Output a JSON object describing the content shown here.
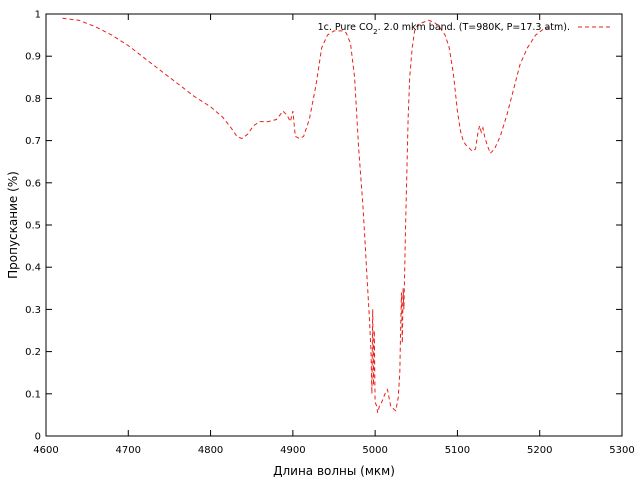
{
  "chart_data": {
    "type": "line",
    "title": "",
    "xlabel": "Длина волны (мкм)",
    "ylabel": "Пропускание (%)",
    "xlim": [
      4600,
      5300
    ],
    "ylim": [
      0,
      1
    ],
    "x_ticks": [
      4600,
      4700,
      4800,
      4900,
      5000,
      5100,
      5200,
      5300
    ],
    "y_ticks": [
      0,
      0.1,
      0.2,
      0.3,
      0.4,
      0.5,
      0.6,
      0.7,
      0.8,
      0.9,
      1
    ],
    "grid": false,
    "legend_position": "top-right",
    "series": [
      {
        "name_parts": [
          "1c. Pure CO",
          "2",
          ". 2.0 mkm band. (T=980K, P=17.3 atm)."
        ],
        "color": "#e8201a",
        "line_style": "dashed",
        "points": [
          [
            4620,
            0.99
          ],
          [
            4640,
            0.985
          ],
          [
            4660,
            0.97
          ],
          [
            4680,
            0.95
          ],
          [
            4700,
            0.925
          ],
          [
            4720,
            0.895
          ],
          [
            4740,
            0.865
          ],
          [
            4760,
            0.835
          ],
          [
            4780,
            0.805
          ],
          [
            4800,
            0.78
          ],
          [
            4815,
            0.755
          ],
          [
            4825,
            0.73
          ],
          [
            4832,
            0.71
          ],
          [
            4838,
            0.705
          ],
          [
            4845,
            0.715
          ],
          [
            4852,
            0.735
          ],
          [
            4860,
            0.745
          ],
          [
            4870,
            0.745
          ],
          [
            4880,
            0.75
          ],
          [
            4888,
            0.77
          ],
          [
            4893,
            0.76
          ],
          [
            4897,
            0.745
          ],
          [
            4900,
            0.77
          ],
          [
            4903,
            0.71
          ],
          [
            4908,
            0.705
          ],
          [
            4913,
            0.71
          ],
          [
            4920,
            0.75
          ],
          [
            4928,
            0.83
          ],
          [
            4935,
            0.92
          ],
          [
            4942,
            0.95
          ],
          [
            4950,
            0.96
          ],
          [
            4960,
            0.96
          ],
          [
            4965,
            0.955
          ],
          [
            4970,
            0.93
          ],
          [
            4975,
            0.85
          ],
          [
            4980,
            0.68
          ],
          [
            4985,
            0.55
          ],
          [
            4988,
            0.45
          ],
          [
            4990,
            0.38
          ],
          [
            4993,
            0.28
          ],
          [
            4995,
            0.2
          ],
          [
            4996,
            0.1
          ],
          [
            4997,
            0.3
          ],
          [
            4998,
            0.12
          ],
          [
            4999,
            0.25
          ],
          [
            5000,
            0.08
          ],
          [
            5002,
            0.07
          ],
          [
            5003,
            0.055
          ],
          [
            5005,
            0.07
          ],
          [
            5008,
            0.08
          ],
          [
            5012,
            0.1
          ],
          [
            5015,
            0.11
          ],
          [
            5017,
            0.09
          ],
          [
            5019,
            0.07
          ],
          [
            5022,
            0.065
          ],
          [
            5025,
            0.06
          ],
          [
            5028,
            0.09
          ],
          [
            5030,
            0.15
          ],
          [
            5031,
            0.26
          ],
          [
            5032,
            0.34
          ],
          [
            5033,
            0.22
          ],
          [
            5034,
            0.35
          ],
          [
            5035,
            0.3
          ],
          [
            5037,
            0.5
          ],
          [
            5040,
            0.75
          ],
          [
            5042,
            0.85
          ],
          [
            5045,
            0.92
          ],
          [
            5048,
            0.96
          ],
          [
            5052,
            0.975
          ],
          [
            5058,
            0.98
          ],
          [
            5065,
            0.985
          ],
          [
            5072,
            0.98
          ],
          [
            5078,
            0.97
          ],
          [
            5085,
            0.95
          ],
          [
            5090,
            0.92
          ],
          [
            5095,
            0.86
          ],
          [
            5100,
            0.77
          ],
          [
            5104,
            0.72
          ],
          [
            5107,
            0.7
          ],
          [
            5110,
            0.69
          ],
          [
            5113,
            0.685
          ],
          [
            5118,
            0.675
          ],
          [
            5122,
            0.68
          ],
          [
            5125,
            0.72
          ],
          [
            5127,
            0.735
          ],
          [
            5129,
            0.72
          ],
          [
            5131,
            0.73
          ],
          [
            5133,
            0.71
          ],
          [
            5136,
            0.69
          ],
          [
            5138,
            0.68
          ],
          [
            5140,
            0.67
          ],
          [
            5145,
            0.68
          ],
          [
            5152,
            0.71
          ],
          [
            5160,
            0.76
          ],
          [
            5168,
            0.82
          ],
          [
            5176,
            0.88
          ],
          [
            5185,
            0.92
          ],
          [
            5195,
            0.95
          ],
          [
            5205,
            0.965
          ],
          [
            5212,
            0.968
          ]
        ]
      }
    ]
  }
}
